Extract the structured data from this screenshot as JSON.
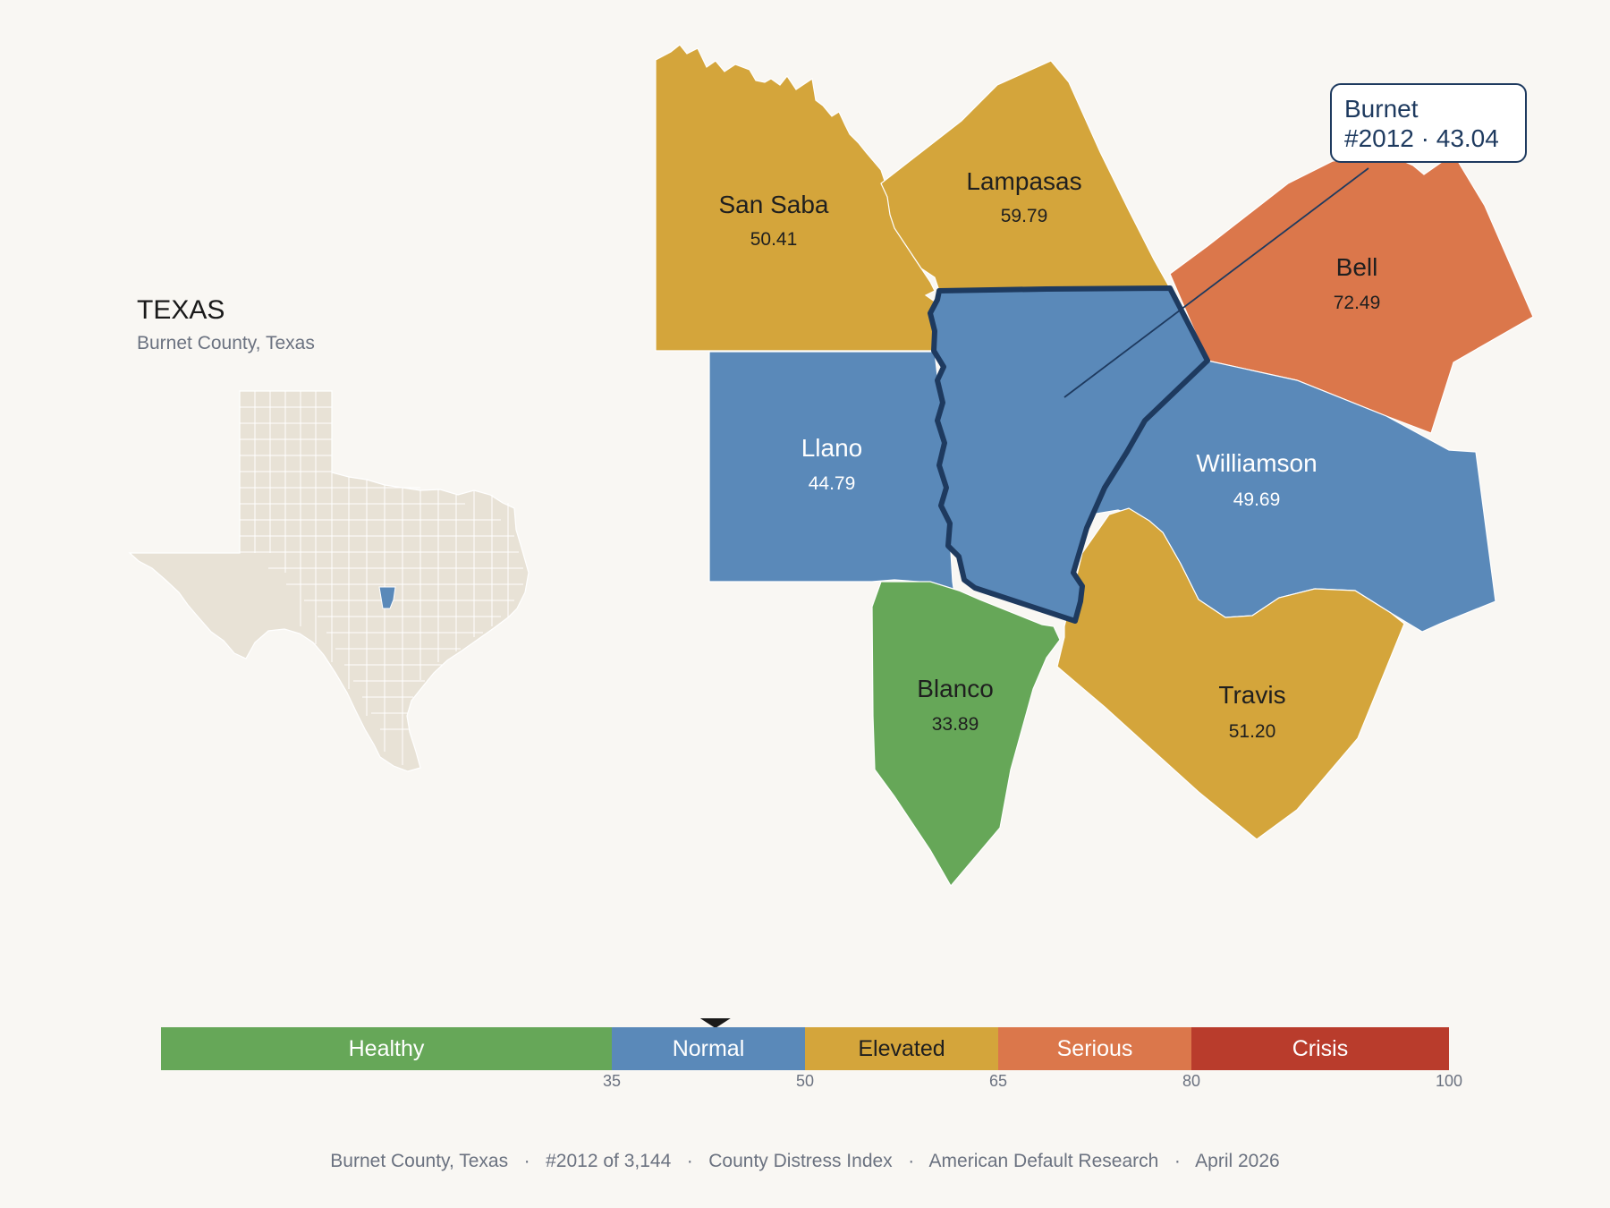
{
  "inset": {
    "state_label": "TEXAS",
    "subtitle": "Burnet County, Texas"
  },
  "callout": {
    "line1": "Burnet",
    "line2": "#2012 · 43.04"
  },
  "counties": [
    {
      "name": "San Saba",
      "value": "50.41",
      "category": "Elevated"
    },
    {
      "name": "Lampasas",
      "value": "59.79",
      "category": "Elevated"
    },
    {
      "name": "Bell",
      "value": "72.49",
      "category": "Serious"
    },
    {
      "name": "Llano",
      "value": "44.79",
      "category": "Normal"
    },
    {
      "name": "Williamson",
      "value": "49.69",
      "category": "Normal"
    },
    {
      "name": "Blanco",
      "value": "33.89",
      "category": "Healthy"
    },
    {
      "name": "Travis",
      "value": "51.20",
      "category": "Elevated"
    },
    {
      "name": "Burnet",
      "value": "43.04",
      "category": "Normal",
      "selected": true
    }
  ],
  "scale": {
    "segments": [
      {
        "label": "Healthy",
        "from": 0,
        "to": 35,
        "color": "#66a758"
      },
      {
        "label": "Normal",
        "from": 35,
        "to": 50,
        "color": "#5a89b9"
      },
      {
        "label": "Elevated",
        "from": 50,
        "to": 65,
        "color": "#d4a53b"
      },
      {
        "label": "Serious",
        "from": 65,
        "to": 80,
        "color": "#db774b"
      },
      {
        "label": "Crisis",
        "from": 80,
        "to": 100,
        "color": "#b93c2c"
      }
    ],
    "ticks": [
      "35",
      "50",
      "65",
      "80",
      "100"
    ],
    "marker_value": 43.04
  },
  "colors": {
    "healthy": "#66a758",
    "normal": "#5a89b9",
    "elevated": "#d4a53b",
    "serious": "#db774b",
    "crisis": "#b93c2c",
    "highlight_border": "#1e3a5f",
    "inset_fill": "#e8e2d6"
  },
  "footer": {
    "county": "Burnet County, Texas",
    "rank": "#2012 of 3,144",
    "index": "County Distress Index",
    "source": "American Default Research",
    "date": "April 2026"
  }
}
